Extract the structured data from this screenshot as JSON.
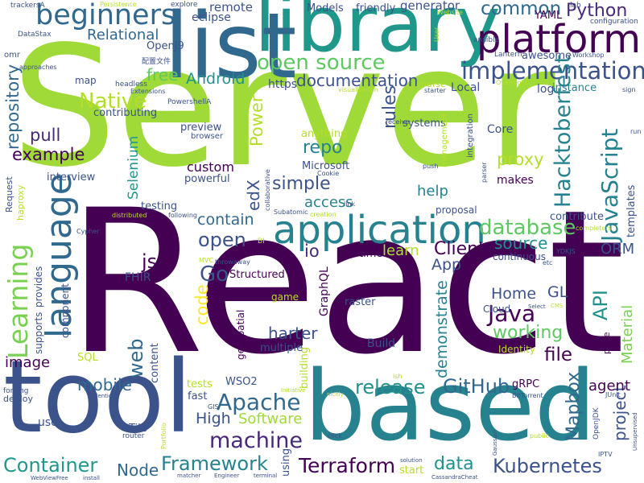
{
  "words": [
    {
      "text": "React",
      "color": "#440154",
      "rot": 0
    },
    {
      "text": "Server",
      "color": "#a0da39",
      "rot": 0
    },
    {
      "text": "library",
      "color": "#1f988b",
      "rot": 0
    },
    {
      "text": "list",
      "color": "#31688e",
      "rot": 0
    },
    {
      "text": "based",
      "color": "#26828e",
      "rot": 0
    },
    {
      "text": "tool",
      "color": "#3b528b",
      "rot": 0
    },
    {
      "text": "platform",
      "color": "#440154",
      "rot": 0
    },
    {
      "text": "application",
      "color": "#26828e",
      "rot": 0
    },
    {
      "text": "beginners",
      "color": "#31688e",
      "rot": 0
    },
    {
      "text": "language",
      "color": "#31688e",
      "rot": 270
    },
    {
      "text": "implementation",
      "color": "#3b528b",
      "rot": 0
    },
    {
      "text": "open source",
      "color": "#5ec962",
      "rot": 0
    },
    {
      "text": "Learning",
      "color": "#7ad151",
      "rot": 270
    },
    {
      "text": "Container",
      "color": "#1f988b",
      "rot": 0
    },
    {
      "text": "Terraform",
      "color": "#440154",
      "rot": 0
    },
    {
      "text": "Framework",
      "color": "#26828e",
      "rot": 0
    },
    {
      "text": "Kubernetes",
      "color": "#3b528b",
      "rot": 0
    },
    {
      "text": "machine",
      "color": "#482878",
      "rot": 0
    },
    {
      "text": "Apache",
      "color": "#31688e",
      "rot": 0
    },
    {
      "text": "JavaScript",
      "color": "#26828e",
      "rot": 270
    },
    {
      "text": "Hacktoberfest",
      "color": "#26828e",
      "rot": 270
    },
    {
      "text": "GitHub",
      "color": "#31688e",
      "rot": 0
    },
    {
      "text": "release",
      "color": "#21918c",
      "rot": 0
    },
    {
      "text": "Java",
      "color": "#440154",
      "rot": 0
    },
    {
      "text": "database",
      "color": "#5ec962",
      "rot": 0
    },
    {
      "text": "Native",
      "color": "#b5de2b",
      "rot": 0
    },
    {
      "text": "repository",
      "color": "#31688e",
      "rot": 270
    },
    {
      "text": "common",
      "color": "#31688e",
      "rot": 0
    },
    {
      "text": "Python",
      "color": "#482878",
      "rot": 0
    },
    {
      "text": "Relational",
      "color": "#31688e",
      "rot": 0
    },
    {
      "text": "free",
      "color": "#5ec962",
      "rot": 0
    },
    {
      "text": "Android",
      "color": "#21918c",
      "rot": 0
    },
    {
      "text": "documentation",
      "color": "#3b528b",
      "rot": 0
    },
    {
      "text": "rules",
      "color": "#3b528b",
      "rot": 270
    },
    {
      "text": "proxy",
      "color": "#b5de2b",
      "rot": 0
    },
    {
      "text": "example",
      "color": "#440154",
      "rot": 0
    },
    {
      "text": "repo",
      "color": "#26828e",
      "rot": 0
    },
    {
      "text": "simple",
      "color": "#3b528b",
      "rot": 0
    },
    {
      "text": "contain",
      "color": "#31688e",
      "rot": 0
    },
    {
      "text": "open",
      "color": "#3b528b",
      "rot": 0
    },
    {
      "text": "source",
      "color": "#21918c",
      "rot": 0
    },
    {
      "text": "Client",
      "color": "#440154",
      "rot": 0
    },
    {
      "text": "API",
      "color": "#21918c",
      "rot": 270
    },
    {
      "text": "ORM",
      "color": "#3b528b",
      "rot": 0
    },
    {
      "text": "Go",
      "color": "#3b528b",
      "rot": 0
    },
    {
      "text": "web",
      "color": "#31688e",
      "rot": 270
    },
    {
      "text": "code",
      "color": "#fde725",
      "rot": 270
    },
    {
      "text": "demonstrate",
      "color": "#26828e",
      "rot": 270
    },
    {
      "text": "working",
      "color": "#5ec962",
      "rot": 0
    },
    {
      "text": "Home",
      "color": "#3b528b",
      "rot": 0
    },
    {
      "text": "GL",
      "color": "#3b528b",
      "rot": 0
    },
    {
      "text": "file",
      "color": "#440154",
      "rot": 0
    },
    {
      "text": "Mapbox",
      "color": "#31688e",
      "rot": 270
    },
    {
      "text": "project",
      "color": "#3b528b",
      "rot": 270
    },
    {
      "text": "agent",
      "color": "#440154",
      "rot": 0
    },
    {
      "text": "Material",
      "color": "#7ad151",
      "rot": 270
    },
    {
      "text": "mobile",
      "color": "#31688e",
      "rot": 0
    },
    {
      "text": "image",
      "color": "#440154",
      "rot": 0
    },
    {
      "text": "Software",
      "color": "#a0da39",
      "rot": 0
    },
    {
      "text": "data",
      "color": "#21918c",
      "rot": 0
    },
    {
      "text": "High",
      "color": "#3b528b",
      "rot": 0
    },
    {
      "text": "Node",
      "color": "#31688e",
      "rot": 0
    },
    {
      "text": "help",
      "color": "#26828e",
      "rot": 0
    },
    {
      "text": "access",
      "color": "#26828e",
      "rot": 0
    },
    {
      "text": "learn",
      "color": "#b5de2b",
      "rot": 0
    },
    {
      "text": "Power",
      "color": "#b5de2b",
      "rot": 270
    },
    {
      "text": "edX",
      "color": "#3b528b",
      "rot": 270
    },
    {
      "text": "pull",
      "color": "#482878",
      "rot": 0
    },
    {
      "text": "js",
      "color": "#440154",
      "rot": 0
    },
    {
      "text": "App",
      "color": "#3b528b",
      "rot": 0
    },
    {
      "text": "io",
      "color": "#482878",
      "rot": 0
    },
    {
      "text": "harter",
      "color": "#3b528b",
      "rot": 0
    },
    {
      "text": "Selenium",
      "color": "#1f988b",
      "rot": 270
    },
    {
      "text": "custom",
      "color": "#440154",
      "rot": 0
    },
    {
      "text": "remote",
      "color": "#3b528b",
      "rot": 0
    },
    {
      "text": "eclipse",
      "color": "#3b528b",
      "rot": 0
    },
    {
      "text": "Models",
      "color": "#3b528b",
      "rot": 0
    },
    {
      "text": "friendly",
      "color": "#3b528b",
      "rot": 0
    },
    {
      "text": "generator",
      "color": "#3b528b",
      "rot": 0
    },
    {
      "text": "YAML",
      "color": "#440154",
      "rot": 0
    },
    {
      "text": "OpenJ9",
      "color": "#3b528b",
      "rot": 0
    },
    {
      "text": "awesome",
      "color": "#3b528b",
      "rot": 0
    },
    {
      "text": "map",
      "color": "#3b528b",
      "rot": 0
    },
    {
      "text": "https",
      "color": "#3b528b",
      "rot": 0
    },
    {
      "text": "Local",
      "color": "#3b528b",
      "rot": 0
    },
    {
      "text": "log",
      "color": "#3b528b",
      "rot": 0
    },
    {
      "text": "instance",
      "color": "#26828e",
      "rot": 0
    },
    {
      "text": "contributing",
      "color": "#3b528b",
      "rot": 0
    },
    {
      "text": "preview",
      "color": "#3b528b",
      "rot": 0
    },
    {
      "text": "anything",
      "color": "#b5de2b",
      "rot": 0
    },
    {
      "text": "systems",
      "color": "#3b528b",
      "rot": 0
    },
    {
      "text": "Core",
      "color": "#3b528b",
      "rot": 0
    },
    {
      "text": "Microsoft",
      "color": "#3b528b",
      "rot": 0
    },
    {
      "text": "powerful",
      "color": "#3b528b",
      "rot": 0
    },
    {
      "text": "interview",
      "color": "#3b528b",
      "rot": 0
    },
    {
      "text": "testing",
      "color": "#3b528b",
      "rot": 0
    },
    {
      "text": "makes",
      "color": "#440154",
      "rot": 0
    },
    {
      "text": "proposal",
      "color": "#3b528b",
      "rot": 0
    },
    {
      "text": "contribute",
      "color": "#3b528b",
      "rot": 0
    },
    {
      "text": "templates",
      "color": "#3b528b",
      "rot": 270
    },
    {
      "text": "Structured",
      "color": "#440154",
      "rot": 0
    },
    {
      "text": "GraphQL",
      "color": "#440154",
      "rot": 270
    },
    {
      "text": "time",
      "color": "#440154",
      "rot": 0
    },
    {
      "text": "continuous",
      "color": "#3b528b",
      "rot": 0
    },
    {
      "text": "FHIR",
      "color": "#3b528b",
      "rot": 0
    },
    {
      "text": "caraza",
      "color": "#440154",
      "rot": 0
    },
    {
      "text": "raster",
      "color": "#3b528b",
      "rot": 0
    },
    {
      "text": "geospatial",
      "color": "#440154",
      "rot": 270
    },
    {
      "text": "game",
      "color": "#b5de2b",
      "rot": 0
    },
    {
      "text": "Cloud",
      "color": "#3b528b",
      "rot": 0
    },
    {
      "text": "Identity",
      "color": "#b5de2b",
      "rot": 0
    },
    {
      "text": "building",
      "color": "#b5de2b",
      "rot": 270
    },
    {
      "text": "multiple",
      "color": "#3b528b",
      "rot": 0
    },
    {
      "text": "Build",
      "color": "#3b528b",
      "rot": 0
    },
    {
      "text": "content",
      "color": "#3b528b",
      "rot": 270
    },
    {
      "text": "component",
      "color": "#3b528b",
      "rot": 270
    },
    {
      "text": "supports",
      "color": "#3b528b",
      "rot": 270
    },
    {
      "text": "provides",
      "color": "#3b528b",
      "rot": 270
    },
    {
      "text": "SQL",
      "color": "#b5de2b",
      "rot": 0
    },
    {
      "text": "tests",
      "color": "#b5de2b",
      "rot": 0
    },
    {
      "text": "fast",
      "color": "#3b528b",
      "rot": 0
    },
    {
      "text": "WSO2",
      "color": "#3b528b",
      "rot": 0
    },
    {
      "text": "gRPC",
      "color": "#440154",
      "rot": 0
    },
    {
      "text": "page",
      "color": "#440154",
      "rot": 270
    },
    {
      "text": "Tile",
      "color": "#3b528b",
      "rot": 0
    },
    {
      "text": "use",
      "color": "#3b528b",
      "rot": 0
    },
    {
      "text": "start",
      "color": "#b5de2b",
      "rot": 0
    },
    {
      "text": "using",
      "color": "#3b528b",
      "rot": 270
    },
    {
      "text": "deploy",
      "color": "#3b528b",
      "rot": 0
    },
    {
      "text": "forking",
      "color": "#3b528b",
      "rot": 0
    },
    {
      "text": "Request",
      "color": "#3b528b",
      "rot": 270
    },
    {
      "text": "haproxy",
      "color": "#b5de2b",
      "rot": 270
    },
    {
      "text": "PowershellA",
      "color": "#3b528b",
      "rot": 0
    },
    {
      "text": "headless",
      "color": "#3b528b",
      "rot": 0
    },
    {
      "text": "browser",
      "color": "#3b528b",
      "rot": 0
    },
    {
      "text": "explore",
      "color": "#3b528b",
      "rot": 0
    },
    {
      "text": "trackersA",
      "color": "#3b528b",
      "rot": 0
    },
    {
      "text": "Persistence",
      "color": "#b5de2b",
      "rot": 0
    },
    {
      "text": "DataStax",
      "color": "#3b528b",
      "rot": 0
    },
    {
      "text": "approaches",
      "color": "#3b528b",
      "rot": 0
    },
    {
      "text": "omr",
      "color": "#3b528b",
      "rot": 0
    },
    {
      "text": "配置文件",
      "color": "#3b528b",
      "rot": 0
    },
    {
      "text": "Extensions",
      "color": "#3b528b",
      "rot": 0
    },
    {
      "text": "lab",
      "color": "#3b528b",
      "rot": 0
    },
    {
      "text": "configuration",
      "color": "#3b528b",
      "rot": 0
    },
    {
      "text": "Website",
      "color": "#b5de2b",
      "rot": 0
    },
    {
      "text": "ansible",
      "color": "#3b528b",
      "rot": 0
    },
    {
      "text": "integration",
      "color": "#3b528b",
      "rot": 270
    },
    {
      "text": "Lantern",
      "color": "#3b528b",
      "rot": 0
    },
    {
      "text": "Workshop",
      "color": "#3b528b",
      "rot": 0
    },
    {
      "text": "User",
      "color": "#b5de2b",
      "rot": 270
    },
    {
      "text": "Overnight",
      "color": "#b5de2b",
      "rot": 0
    },
    {
      "text": "course",
      "color": "#b5de2b",
      "rot": 0
    },
    {
      "text": "starter",
      "color": "#3b528b",
      "rot": 0
    },
    {
      "text": "visualization",
      "color": "#b5de2b",
      "rot": 0
    },
    {
      "text": "management",
      "color": "#b5de2b",
      "rot": 270
    },
    {
      "text": "receive",
      "color": "#3b528b",
      "rot": 0
    },
    {
      "text": "push",
      "color": "#3b528b",
      "rot": 0
    },
    {
      "text": "Cookie",
      "color": "#3b528b",
      "rot": 0
    },
    {
      "text": "parser",
      "color": "#3b528b",
      "rot": 270
    },
    {
      "text": "link",
      "color": "#3b528b",
      "rot": 0
    },
    {
      "text": "Subatomic",
      "color": "#3b528b",
      "rot": 0
    },
    {
      "text": "creation",
      "color": "#b5de2b",
      "rot": 0
    },
    {
      "text": "distributed",
      "color": "#b5de2b",
      "rot": 0
    },
    {
      "text": "following",
      "color": "#3b528b",
      "rot": 0
    },
    {
      "text": "collaborative",
      "color": "#3b528b",
      "rot": 270
    },
    {
      "text": "Cypher",
      "color": "#3b528b",
      "rot": 0
    },
    {
      "text": "BI",
      "color": "#b5de2b",
      "rot": 0
    },
    {
      "text": "MVC",
      "color": "#b5de2b",
      "rot": 0
    },
    {
      "text": "throwaway",
      "color": "#3b528b",
      "rot": 0
    },
    {
      "text": "YDKJS",
      "color": "#3b528b",
      "rot": 0
    },
    {
      "text": "etc",
      "color": "#3b528b",
      "rot": 0
    },
    {
      "text": "completers",
      "color": "#b5de2b",
      "rot": 0
    },
    {
      "text": "sign",
      "color": "#3b528b",
      "rot": 0
    },
    {
      "text": "run",
      "color": "#3b528b",
      "rot": 0
    },
    {
      "text": "Select",
      "color": "#3b528b",
      "rot": 0
    },
    {
      "text": "CMS",
      "color": "#b5de2b",
      "rot": 0
    },
    {
      "text": "ish",
      "color": "#b5de2b",
      "rot": 0
    },
    {
      "text": "GIS",
      "color": "#3b528b",
      "rot": 0
    },
    {
      "text": "Initiative",
      "color": "#b5de2b",
      "rot": 0
    },
    {
      "text": "nicely",
      "color": "#b5de2b",
      "rot": 0
    },
    {
      "text": "BitTorrent",
      "color": "#3b528b",
      "rot": 0
    },
    {
      "text": "OpenJDK",
      "color": "#3b528b",
      "rot": 270
    },
    {
      "text": "JUnit",
      "color": "#3b528b",
      "rot": 0
    },
    {
      "text": "Unsupervised",
      "color": "#3b528b",
      "rot": 270
    },
    {
      "text": "identical",
      "color": "#3b528b",
      "rot": 0
    },
    {
      "text": "Portfolio",
      "color": "#b5de2b",
      "rot": 270
    },
    {
      "text": "router",
      "color": "#3b528b",
      "rot": 0
    },
    {
      "text": "click",
      "color": "#3b528b",
      "rot": 0
    },
    {
      "text": "public",
      "color": "#b5de2b",
      "rot": 0
    },
    {
      "text": "Gaussian",
      "color": "#3b528b",
      "rot": 270
    },
    {
      "text": "IPTV",
      "color": "#3b528b",
      "rot": 0
    },
    {
      "text": "solution",
      "color": "#3b528b",
      "rot": 0
    },
    {
      "text": "CassandraCheat",
      "color": "#3b528b",
      "rot": 0
    },
    {
      "text": "WebViewFree",
      "color": "#3b528b",
      "rot": 0
    },
    {
      "text": "install",
      "color": "#3b528b",
      "rot": 0
    },
    {
      "text": "matcher",
      "color": "#3b528b",
      "rot": 0
    },
    {
      "text": "Engineer",
      "color": "#3b528b",
      "rot": 0
    },
    {
      "text": "terminal",
      "color": "#3b528b",
      "rot": 0
    }
  ]
}
